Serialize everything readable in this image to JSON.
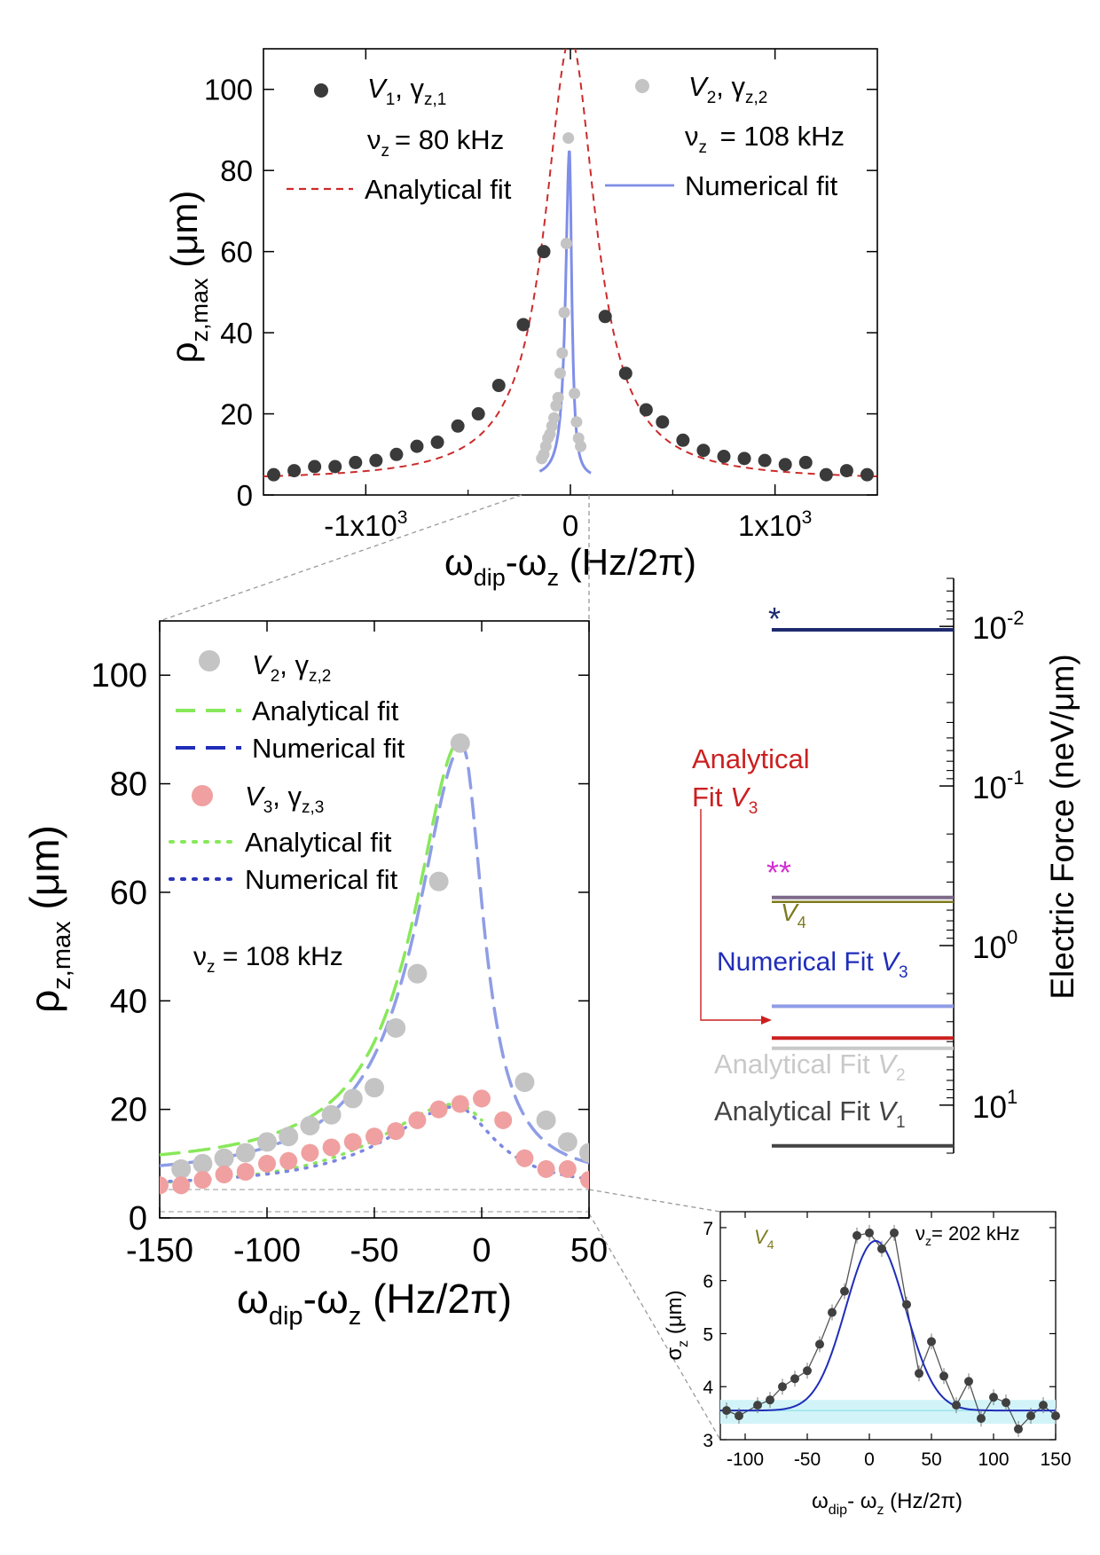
{
  "chart_data": [
    {
      "id": "top",
      "type": "scatter",
      "xlabel": "ωdip-ωz (Hz/2π)",
      "ylabel": "ρz,max (μm)",
      "xlim": [
        -1500,
        1500
      ],
      "ylim": [
        0,
        110
      ],
      "x_ticks": [
        {
          "value": -1000,
          "label": "-1x10",
          "sup": "3"
        },
        {
          "value": 0,
          "label": "0",
          "sup": ""
        },
        {
          "value": 1000,
          "label": "1x10",
          "sup": "3"
        }
      ],
      "y_ticks": [
        0,
        20,
        40,
        60,
        80,
        100
      ],
      "legend": {
        "s1_V": "V",
        "s1_sub": "1",
        "s1_gamma": ", γ",
        "s1_gsub": "z,1",
        "s1_nu": "ν",
        "s1_nusub": "z",
        "s1_freq": "= 80 kHz",
        "s1_fit": "Analytical fit",
        "s2_V": "V",
        "s2_sub": "2",
        "s2_gamma": ", γ",
        "s2_gsub": "z,2",
        "s2_nu": "ν",
        "s2_nusub": "z",
        "s2_freq": " = 108 kHz",
        "s2_fit": "Numerical fit"
      },
      "series": [
        {
          "name": "V1 data",
          "color": "#3a3a3a",
          "x": [
            -1450,
            -1350,
            -1250,
            -1150,
            -1050,
            -950,
            -850,
            -750,
            -650,
            -550,
            -450,
            -350,
            -230,
            -130,
            170,
            270,
            370,
            450,
            550,
            650,
            750,
            850,
            950,
            1050,
            1150,
            1250,
            1350,
            1450
          ],
          "y": [
            5,
            6,
            7,
            7,
            8,
            8.5,
            10,
            12,
            13,
            17,
            20,
            27,
            42,
            60,
            44,
            30,
            21,
            18,
            13.5,
            11,
            9.5,
            9,
            8.5,
            7.5,
            8,
            5,
            6,
            5
          ]
        },
        {
          "name": "V2 data",
          "color": "#c4c4c4",
          "x": [
            -140,
            -130,
            -120,
            -110,
            -100,
            -90,
            -80,
            -70,
            -60,
            -50,
            -40,
            -30,
            -20,
            -10,
            20,
            30,
            40,
            50
          ],
          "y": [
            9,
            10,
            12,
            14,
            15,
            17,
            19,
            22,
            24,
            30,
            35,
            45,
            62,
            88,
            25,
            18,
            14,
            12
          ]
        },
        {
          "name": "Analytical fit V1",
          "color": "#cc2b2b",
          "style": "dashed",
          "model": "lorentz",
          "peak": 109,
          "width": 150,
          "offset": 3.5
        },
        {
          "name": "Numerical fit V2",
          "color": "#7f8ee8",
          "style": "solid"
        }
      ]
    },
    {
      "id": "zoom",
      "type": "scatter",
      "xlabel": "ωdip-ωz (Hz/2π)",
      "ylabel": "ρz,max (μm)",
      "xlim": [
        -150,
        50
      ],
      "ylim": [
        0,
        110
      ],
      "x_ticks": [
        -150,
        -100,
        -50,
        0,
        50
      ],
      "y_ticks": [
        0,
        20,
        40,
        60,
        80,
        100
      ],
      "annotation_nu": "ν",
      "annotation_sub": "z",
      "annotation_text": " = 108 kHz",
      "legend": {
        "v2_V": "V",
        "v2_sub": "2",
        "v2_gamma": ", γ",
        "v2_gsub": "z,2",
        "v2_afit": "Analytical fit",
        "v2_nfit": "Numerical fit",
        "v3_V": "V",
        "v3_sub": "3",
        "v3_gamma": ", γ",
        "v3_gsub": "z,3",
        "v3_afit": "Analytical fit",
        "v3_nfit": "Numerical fit"
      },
      "series": [
        {
          "name": "V2, γz,2",
          "color": "#c4c4c4",
          "x": [
            -140,
            -130,
            -120,
            -110,
            -100,
            -90,
            -80,
            -70,
            -60,
            -50,
            -40,
            -30,
            -20,
            -10,
            20,
            30,
            40,
            50
          ],
          "y": [
            9,
            10,
            11,
            12,
            14,
            15,
            17,
            19,
            22,
            24,
            35,
            45,
            62,
            87.5,
            25,
            18,
            14,
            12
          ]
        },
        {
          "name": "V3, γz,3",
          "color": "#f0a0a0",
          "x": [
            -150,
            -140,
            -130,
            -120,
            -110,
            -100,
            -90,
            -80,
            -70,
            -60,
            -50,
            -40,
            -30,
            -20,
            -10,
            0,
            10,
            20,
            30,
            40,
            50
          ],
          "y": [
            6,
            6,
            7,
            8,
            8.5,
            10,
            10.5,
            12,
            13,
            14,
            15,
            16,
            18,
            20,
            21,
            22,
            18,
            11,
            9,
            9,
            7
          ]
        },
        {
          "name": "Analytical fit V2",
          "color": "#88e85a",
          "style": "long-dash"
        },
        {
          "name": "Numerical fit V2",
          "color": "#8f9de6",
          "style": "long-dash"
        },
        {
          "name": "Analytical fit V3",
          "color": "#88e85a",
          "style": "dotted"
        },
        {
          "name": "Numerical fit V3",
          "color": "#7c86e0",
          "style": "dotted"
        }
      ]
    },
    {
      "id": "force-scale",
      "type": "bar",
      "ylabel": "Electric Force (neV/μm)",
      "scale": "log",
      "ylim": [
        0.005,
        20
      ],
      "y_ticks": [
        {
          "value": 0.01,
          "base": "10",
          "sup": "-2"
        },
        {
          "value": 0.1,
          "base": "10",
          "sup": "-1"
        },
        {
          "value": 1,
          "base": "10",
          "sup": "0"
        },
        {
          "value": 10,
          "base": "10",
          "sup": "1"
        }
      ],
      "levels": [
        {
          "name": "star",
          "value": 0.0105,
          "color": "#1d2a6e",
          "marker": "*",
          "marker_color": "#1d2a6e"
        },
        {
          "name": "V4 / double-star",
          "value": 0.5,
          "color": "#7e6a8a",
          "marker": "**",
          "marker_color": "#d233d2"
        },
        {
          "name": "Numerical Fit V3",
          "value": 2.4,
          "color": "#8f9de6"
        },
        {
          "name": "Analytical Fit V3",
          "value": 3.8,
          "color": "#cc2020"
        },
        {
          "name": "Analytical Fit V2",
          "value": 4.4,
          "color": "#c9c9c9"
        },
        {
          "name": "Analytical Fit V1",
          "value": 18,
          "color": "#444444"
        }
      ],
      "labels": {
        "anv3_line1": "Analytical",
        "anv3_line2": "Fit ",
        "anv3_V": "V",
        "anv3_sub": "3",
        "v4_V": "V",
        "v4_sub": "4",
        "numv3": "Numerical Fit ",
        "numv3_V": "V",
        "numv3_sub": "3",
        "anv2": "Analytical  Fit ",
        "anv2_V": "V",
        "anv2_sub": "2",
        "anv1": "Analytical  Fit ",
        "anv1_V": "V",
        "anv1_sub": "1",
        "star1": "*",
        "star2": "**"
      }
    },
    {
      "id": "inset",
      "type": "scatter",
      "xlabel": "ωdip- ωz (Hz/2π)",
      "ylabel": "σz (μm)",
      "xlim": [
        -120,
        150
      ],
      "ylim": [
        3,
        7.3
      ],
      "x_ticks": [
        -100,
        -50,
        0,
        50,
        100,
        150
      ],
      "y_ticks": [
        3,
        4,
        5,
        6,
        7
      ],
      "label_V": "V",
      "label_sub": "4",
      "nu": "ν",
      "nu_sub": "z",
      "freq": "= 202 kHz",
      "band": [
        3.3,
        3.75
      ],
      "series": [
        {
          "name": "V4 data",
          "color": "#404040",
          "x": [
            -115,
            -105,
            -90,
            -80,
            -70,
            -60,
            -50,
            -40,
            -30,
            -20,
            -10,
            0,
            10,
            20,
            30,
            40,
            50,
            60,
            70,
            80,
            90,
            100,
            110,
            120,
            130,
            140,
            150
          ],
          "y": [
            3.55,
            3.45,
            3.65,
            3.75,
            4.0,
            4.15,
            4.3,
            4.8,
            5.4,
            5.8,
            6.85,
            6.9,
            6.6,
            6.9,
            5.55,
            4.25,
            4.85,
            4.2,
            3.65,
            4.1,
            3.4,
            3.8,
            3.7,
            3.2,
            3.45,
            3.65,
            3.45
          ]
        },
        {
          "name": "Gaussian fit",
          "color": "#1f2db8",
          "model": "gauss",
          "amp": 3.2,
          "center": 5,
          "sigma": 24,
          "offset": 3.55
        }
      ]
    }
  ]
}
